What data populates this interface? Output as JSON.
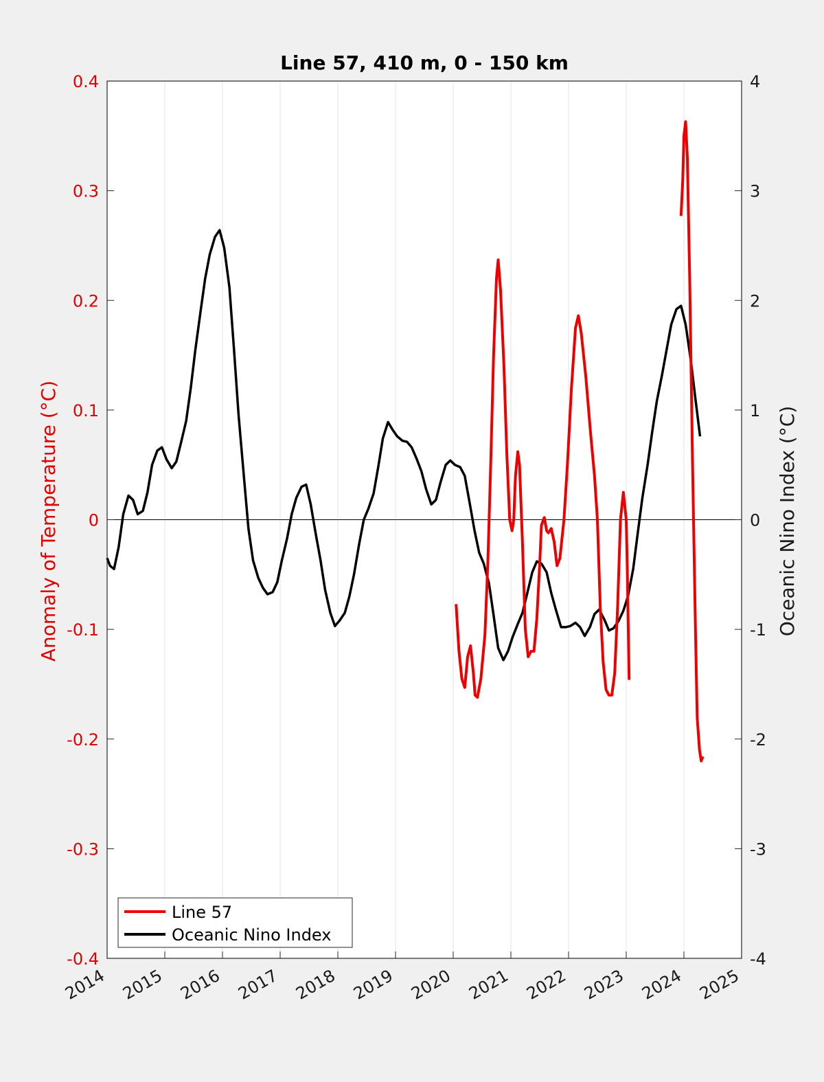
{
  "chart_data": {
    "type": "line",
    "title": "Line 57, 410 m, 0 - 150 km",
    "xlabel": "",
    "ylabel_left": "Anomaly of Temperature (°C)",
    "ylabel_right": "Oceanic Nino Index (°C)",
    "xlim": [
      2014,
      2025
    ],
    "ylim_left": [
      -0.4,
      0.4
    ],
    "ylim_right": [
      -4,
      4
    ],
    "x_ticks": [
      "2014",
      "2015",
      "2016",
      "2017",
      "2018",
      "2019",
      "2020",
      "2021",
      "2022",
      "2023",
      "2024",
      "2025"
    ],
    "y_ticks_left": [
      "-0.4",
      "-0.3",
      "-0.2",
      "-0.1",
      "0",
      "0.1",
      "0.2",
      "0.3",
      "0.4"
    ],
    "y_ticks_right": [
      "-4",
      "-3",
      "-2",
      "-1",
      "0",
      "1",
      "2",
      "3",
      "4"
    ],
    "grid": "vertical",
    "zero_line": true,
    "legend_position": "bottom-left",
    "colors": {
      "line57": "#ee0000",
      "oni": "#000000",
      "left_axis": "#e00000",
      "right_axis": "#1a1a1a"
    },
    "series": [
      {
        "name": "Line 57",
        "axis": "left",
        "color": "#ee0000",
        "segments": [
          [
            [
              2020.05,
              -0.077
            ],
            [
              2020.1,
              -0.12
            ],
            [
              2020.15,
              -0.145
            ],
            [
              2020.2,
              -0.153
            ],
            [
              2020.25,
              -0.125
            ],
            [
              2020.3,
              -0.115
            ],
            [
              2020.35,
              -0.14
            ],
            [
              2020.38,
              -0.16
            ],
            [
              2020.42,
              -0.162
            ],
            [
              2020.48,
              -0.145
            ],
            [
              2020.55,
              -0.105
            ],
            [
              2020.6,
              -0.04
            ],
            [
              2020.65,
              0.05
            ],
            [
              2020.7,
              0.15
            ],
            [
              2020.75,
              0.22
            ],
            [
              2020.78,
              0.237
            ],
            [
              2020.82,
              0.21
            ],
            [
              2020.88,
              0.14
            ],
            [
              2020.93,
              0.06
            ],
            [
              2020.98,
              0.0
            ],
            [
              2021.02,
              -0.01
            ],
            [
              2021.05,
              0.0
            ],
            [
              2021.08,
              0.04
            ],
            [
              2021.12,
              0.062
            ],
            [
              2021.15,
              0.05
            ],
            [
              2021.2,
              -0.02
            ],
            [
              2021.25,
              -0.1
            ],
            [
              2021.3,
              -0.125
            ],
            [
              2021.35,
              -0.12
            ],
            [
              2021.4,
              -0.12
            ],
            [
              2021.45,
              -0.09
            ],
            [
              2021.5,
              -0.04
            ],
            [
              2021.53,
              -0.005
            ],
            [
              2021.58,
              0.002
            ],
            [
              2021.62,
              -0.01
            ],
            [
              2021.65,
              -0.012
            ],
            [
              2021.7,
              -0.008
            ],
            [
              2021.75,
              -0.02
            ],
            [
              2021.8,
              -0.042
            ],
            [
              2021.85,
              -0.035
            ],
            [
              2021.92,
              0.0
            ],
            [
              2021.98,
              0.05
            ],
            [
              2022.05,
              0.12
            ],
            [
              2022.12,
              0.175
            ],
            [
              2022.17,
              0.186
            ],
            [
              2022.22,
              0.17
            ],
            [
              2022.3,
              0.13
            ],
            [
              2022.38,
              0.08
            ],
            [
              2022.45,
              0.04
            ],
            [
              2022.5,
              0.0
            ],
            [
              2022.55,
              -0.08
            ],
            [
              2022.6,
              -0.13
            ],
            [
              2022.65,
              -0.155
            ],
            [
              2022.7,
              -0.16
            ],
            [
              2022.75,
              -0.16
            ],
            [
              2022.8,
              -0.14
            ],
            [
              2022.85,
              -0.08
            ],
            [
              2022.9,
              0.0
            ],
            [
              2022.95,
              0.025
            ],
            [
              2023.0,
              0.0
            ],
            [
              2023.02,
              -0.05
            ],
            [
              2023.05,
              -0.146
            ]
          ],
          [
            [
              2023.95,
              0.277
            ],
            [
              2023.98,
              0.31
            ],
            [
              2024.0,
              0.35
            ],
            [
              2024.03,
              0.363
            ],
            [
              2024.06,
              0.33
            ],
            [
              2024.1,
              0.22
            ],
            [
              2024.15,
              0.05
            ],
            [
              2024.2,
              -0.1
            ],
            [
              2024.23,
              -0.18
            ],
            [
              2024.27,
              -0.21
            ],
            [
              2024.3,
              -0.22
            ],
            [
              2024.33,
              -0.216
            ]
          ]
        ]
      },
      {
        "name": "Oceanic Nino Index",
        "axis": "right",
        "color": "#000000",
        "points": [
          [
            2014.0,
            -0.35
          ],
          [
            2014.05,
            -0.42
          ],
          [
            2014.12,
            -0.45
          ],
          [
            2014.2,
            -0.25
          ],
          [
            2014.28,
            0.05
          ],
          [
            2014.37,
            0.22
          ],
          [
            2014.45,
            0.18
          ],
          [
            2014.53,
            0.05
          ],
          [
            2014.62,
            0.08
          ],
          [
            2014.7,
            0.25
          ],
          [
            2014.78,
            0.5
          ],
          [
            2014.87,
            0.63
          ],
          [
            2014.95,
            0.66
          ],
          [
            2015.03,
            0.55
          ],
          [
            2015.12,
            0.47
          ],
          [
            2015.2,
            0.53
          ],
          [
            2015.28,
            0.7
          ],
          [
            2015.37,
            0.9
          ],
          [
            2015.45,
            1.2
          ],
          [
            2015.53,
            1.55
          ],
          [
            2015.62,
            1.9
          ],
          [
            2015.7,
            2.2
          ],
          [
            2015.78,
            2.42
          ],
          [
            2015.87,
            2.58
          ],
          [
            2015.95,
            2.64
          ],
          [
            2016.03,
            2.48
          ],
          [
            2016.12,
            2.12
          ],
          [
            2016.2,
            1.55
          ],
          [
            2016.28,
            0.95
          ],
          [
            2016.37,
            0.4
          ],
          [
            2016.45,
            -0.08
          ],
          [
            2016.53,
            -0.37
          ],
          [
            2016.62,
            -0.53
          ],
          [
            2016.7,
            -0.62
          ],
          [
            2016.78,
            -0.68
          ],
          [
            2016.87,
            -0.66
          ],
          [
            2016.95,
            -0.57
          ],
          [
            2017.03,
            -0.37
          ],
          [
            2017.12,
            -0.17
          ],
          [
            2017.2,
            0.05
          ],
          [
            2017.28,
            0.2
          ],
          [
            2017.37,
            0.3
          ],
          [
            2017.45,
            0.32
          ],
          [
            2017.53,
            0.14
          ],
          [
            2017.62,
            -0.14
          ],
          [
            2017.7,
            -0.37
          ],
          [
            2017.78,
            -0.64
          ],
          [
            2017.87,
            -0.85
          ],
          [
            2017.95,
            -0.97
          ],
          [
            2018.03,
            -0.92
          ],
          [
            2018.12,
            -0.85
          ],
          [
            2018.2,
            -0.7
          ],
          [
            2018.28,
            -0.5
          ],
          [
            2018.37,
            -0.22
          ],
          [
            2018.45,
            0.0
          ],
          [
            2018.53,
            0.1
          ],
          [
            2018.62,
            0.24
          ],
          [
            2018.7,
            0.48
          ],
          [
            2018.78,
            0.74
          ],
          [
            2018.87,
            0.89
          ],
          [
            2018.95,
            0.82
          ],
          [
            2019.03,
            0.76
          ],
          [
            2019.12,
            0.72
          ],
          [
            2019.2,
            0.71
          ],
          [
            2019.28,
            0.66
          ],
          [
            2019.37,
            0.55
          ],
          [
            2019.45,
            0.44
          ],
          [
            2019.53,
            0.28
          ],
          [
            2019.62,
            0.14
          ],
          [
            2019.7,
            0.18
          ],
          [
            2019.78,
            0.34
          ],
          [
            2019.87,
            0.5
          ],
          [
            2019.95,
            0.54
          ],
          [
            2020.03,
            0.5
          ],
          [
            2020.12,
            0.48
          ],
          [
            2020.2,
            0.4
          ],
          [
            2020.28,
            0.17
          ],
          [
            2020.37,
            -0.1
          ],
          [
            2020.45,
            -0.3
          ],
          [
            2020.53,
            -0.4
          ],
          [
            2020.62,
            -0.58
          ],
          [
            2020.7,
            -0.87
          ],
          [
            2020.78,
            -1.17
          ],
          [
            2020.87,
            -1.28
          ],
          [
            2020.95,
            -1.2
          ],
          [
            2021.03,
            -1.07
          ],
          [
            2021.12,
            -0.95
          ],
          [
            2021.2,
            -0.85
          ],
          [
            2021.28,
            -0.68
          ],
          [
            2021.37,
            -0.48
          ],
          [
            2021.45,
            -0.38
          ],
          [
            2021.53,
            -0.4
          ],
          [
            2021.62,
            -0.48
          ],
          [
            2021.7,
            -0.67
          ],
          [
            2021.78,
            -0.82
          ],
          [
            2021.87,
            -0.98
          ],
          [
            2021.95,
            -0.98
          ],
          [
            2022.03,
            -0.97
          ],
          [
            2022.12,
            -0.94
          ],
          [
            2022.2,
            -0.98
          ],
          [
            2022.28,
            -1.06
          ],
          [
            2022.37,
            -0.98
          ],
          [
            2022.45,
            -0.86
          ],
          [
            2022.53,
            -0.82
          ],
          [
            2022.62,
            -0.91
          ],
          [
            2022.7,
            -1.01
          ],
          [
            2022.78,
            -0.99
          ],
          [
            2022.87,
            -0.92
          ],
          [
            2022.95,
            -0.83
          ],
          [
            2023.03,
            -0.7
          ],
          [
            2023.12,
            -0.45
          ],
          [
            2023.2,
            -0.12
          ],
          [
            2023.28,
            0.2
          ],
          [
            2023.37,
            0.5
          ],
          [
            2023.45,
            0.8
          ],
          [
            2023.53,
            1.08
          ],
          [
            2023.62,
            1.32
          ],
          [
            2023.7,
            1.55
          ],
          [
            2023.78,
            1.78
          ],
          [
            2023.87,
            1.92
          ],
          [
            2023.95,
            1.95
          ],
          [
            2024.03,
            1.78
          ],
          [
            2024.12,
            1.45
          ],
          [
            2024.2,
            1.1
          ],
          [
            2024.28,
            0.76
          ]
        ]
      }
    ]
  }
}
